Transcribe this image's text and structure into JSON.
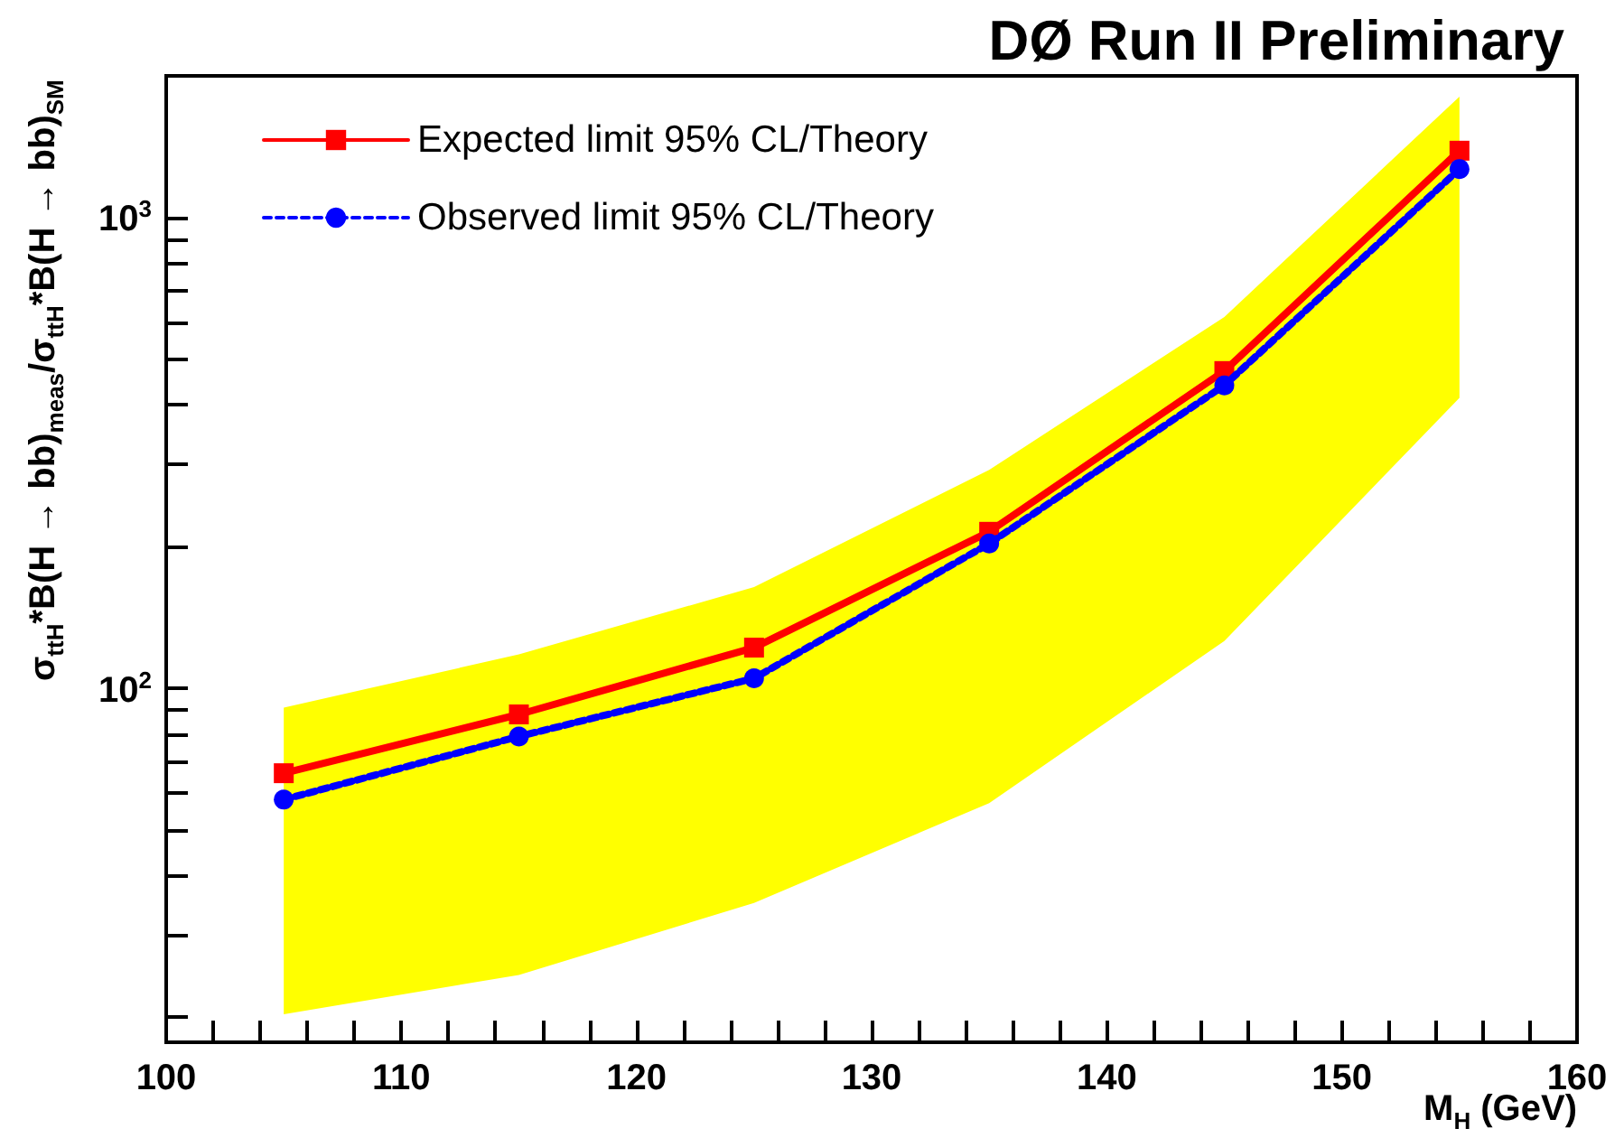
{
  "chart_data": {
    "type": "line",
    "title": "DØ Run II Preliminary",
    "xlabel": "M$_{H}$ (GeV)",
    "ylabel": "σ$_{ttH}$*B(H → bb)$_{meas}$/σ$_{ttH}$*B(H → bb)$_{SM}$",
    "x": [
      105,
      115,
      125,
      135,
      145,
      155
    ],
    "series": [
      {
        "name": "Expected limit 95% CL/Theory",
        "color": "#ff0000",
        "marker": "square",
        "line_style": "solid",
        "values": [
          66,
          88,
          122,
          215,
          472,
          1387
        ],
        "lower": [
          20.3,
          24.6,
          35,
          57,
          126,
          414
        ],
        "upper": [
          91,
          118,
          164,
          291,
          615,
          1806
        ]
      },
      {
        "name": "Observed limit 95% CL/Theory",
        "color": "#0000ff",
        "marker": "circle",
        "line_style": "dotted",
        "values": [
          58,
          79,
          105,
          203,
          440,
          1268
        ]
      }
    ],
    "log": "y",
    "xlim": [
      100,
      160
    ],
    "ylim": [
      17.7,
      2000
    ],
    "xticks": [
      100,
      {
        "value": 102,
        "label": null
      },
      {
        "value": 104,
        "label": null
      },
      {
        "value": 106,
        "label": null
      },
      {
        "value": 108,
        "label": null
      },
      110,
      {
        "value": 112,
        "label": null
      },
      {
        "value": 114,
        "label": null
      },
      {
        "value": 116,
        "label": null
      },
      {
        "value": 118,
        "label": null
      },
      120,
      {
        "value": 122,
        "label": null
      },
      {
        "value": 124,
        "label": null
      },
      {
        "value": 126,
        "label": null
      },
      {
        "value": 128,
        "label": null
      },
      130,
      {
        "value": 132,
        "label": null
      },
      {
        "value": 134,
        "label": null
      },
      {
        "value": 136,
        "label": null
      },
      {
        "value": 138,
        "label": null
      },
      140,
      {
        "value": 142,
        "label": null
      },
      {
        "value": 144,
        "label": null
      },
      {
        "value": 146,
        "label": null
      },
      {
        "value": 148,
        "label": null
      },
      150,
      {
        "value": 152,
        "label": null
      },
      {
        "value": 154,
        "label": null
      },
      {
        "value": 156,
        "label": null
      },
      {
        "value": 158,
        "label": null
      },
      160
    ],
    "yticks": [
      {
        "value": 20,
        "label": null
      },
      {
        "value": 30,
        "label": null
      },
      {
        "value": 40,
        "label": null
      },
      {
        "value": 50,
        "label": null
      },
      {
        "value": 60,
        "label": null
      },
      {
        "value": 70,
        "label": null
      },
      {
        "value": 80,
        "label": null
      },
      {
        "value": 90,
        "label": null
      },
      {
        "value": 100,
        "label": "10$^{2}$"
      },
      {
        "value": 200,
        "label": null
      },
      {
        "value": 300,
        "label": null
      },
      {
        "value": 400,
        "label": null
      },
      {
        "value": 500,
        "label": null
      },
      {
        "value": 600,
        "label": null
      },
      {
        "value": 700,
        "label": null
      },
      {
        "value": 800,
        "label": null
      },
      {
        "value": 900,
        "label": null
      },
      {
        "value": 1000,
        "label": "10$^{3}$"
      }
    ],
    "grid": false,
    "legend": "top left"
  }
}
